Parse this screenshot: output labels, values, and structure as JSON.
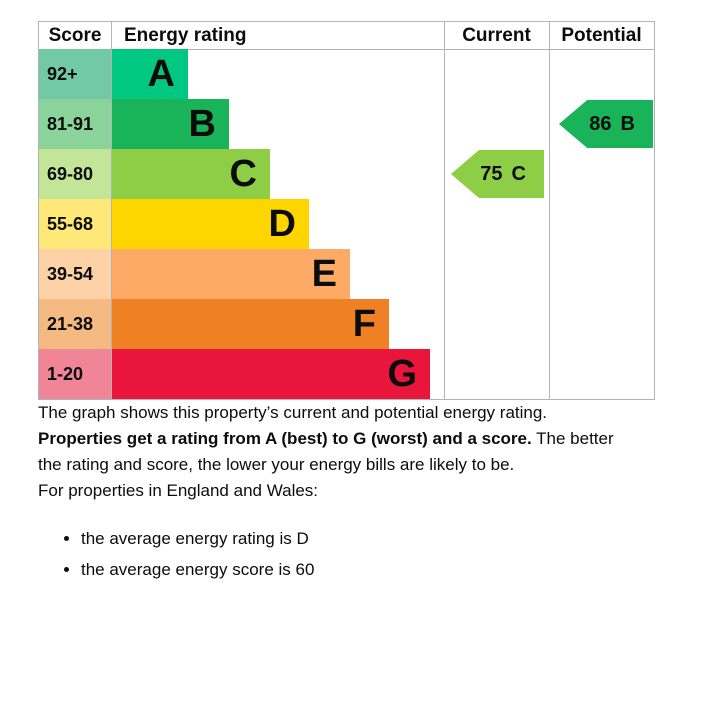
{
  "chart": {
    "headers": {
      "score": "Score",
      "rating": "Energy rating",
      "current": "Current",
      "potential": "Potential"
    }
  },
  "chart_data": {
    "type": "bar",
    "title": "Energy rating",
    "categories": [
      "A",
      "B",
      "C",
      "D",
      "E",
      "F",
      "G"
    ],
    "bands": [
      {
        "letter": "A",
        "range": "92+",
        "color": "#00c781",
        "tint": "#72c9a5"
      },
      {
        "letter": "B",
        "range": "81-91",
        "color": "#19b459",
        "tint": "#8ad39a"
      },
      {
        "letter": "C",
        "range": "69-80",
        "color": "#8dce46",
        "tint": "#c2e598"
      },
      {
        "letter": "D",
        "range": "55-68",
        "color": "#ffd500",
        "tint": "#ffe878"
      },
      {
        "letter": "E",
        "range": "39-54",
        "color": "#fcaa65",
        "tint": "#fdd2a7"
      },
      {
        "letter": "F",
        "range": "21-38",
        "color": "#ef8023",
        "tint": "#f5ba82"
      },
      {
        "letter": "G",
        "range": "1-20",
        "color": "#e9153b",
        "tint": "#f08598"
      }
    ],
    "current": {
      "score": "75",
      "letter": "C",
      "color": "#8dce46",
      "band_index": 2
    },
    "potential": {
      "score": "86",
      "letter": "B",
      "color": "#19b459",
      "band_index": 1
    },
    "legend_position": "none",
    "grid": false
  },
  "text": {
    "intro": "The graph shows this property’s current and potential energy rating.",
    "rating_bold": "Properties get a rating from A (best) to G (worst) and a score.",
    "rating_rest_line1": "The better",
    "rating_rest_line2": "the rating and score, the lower your energy bills are likely to be.",
    "region_line": "For properties in England and Wales:",
    "bullets": [
      "the average energy rating is D",
      "the average energy score is 60"
    ]
  },
  "colors": {
    "border": "#b1b4b6",
    "text": "#0b0c0c"
  }
}
